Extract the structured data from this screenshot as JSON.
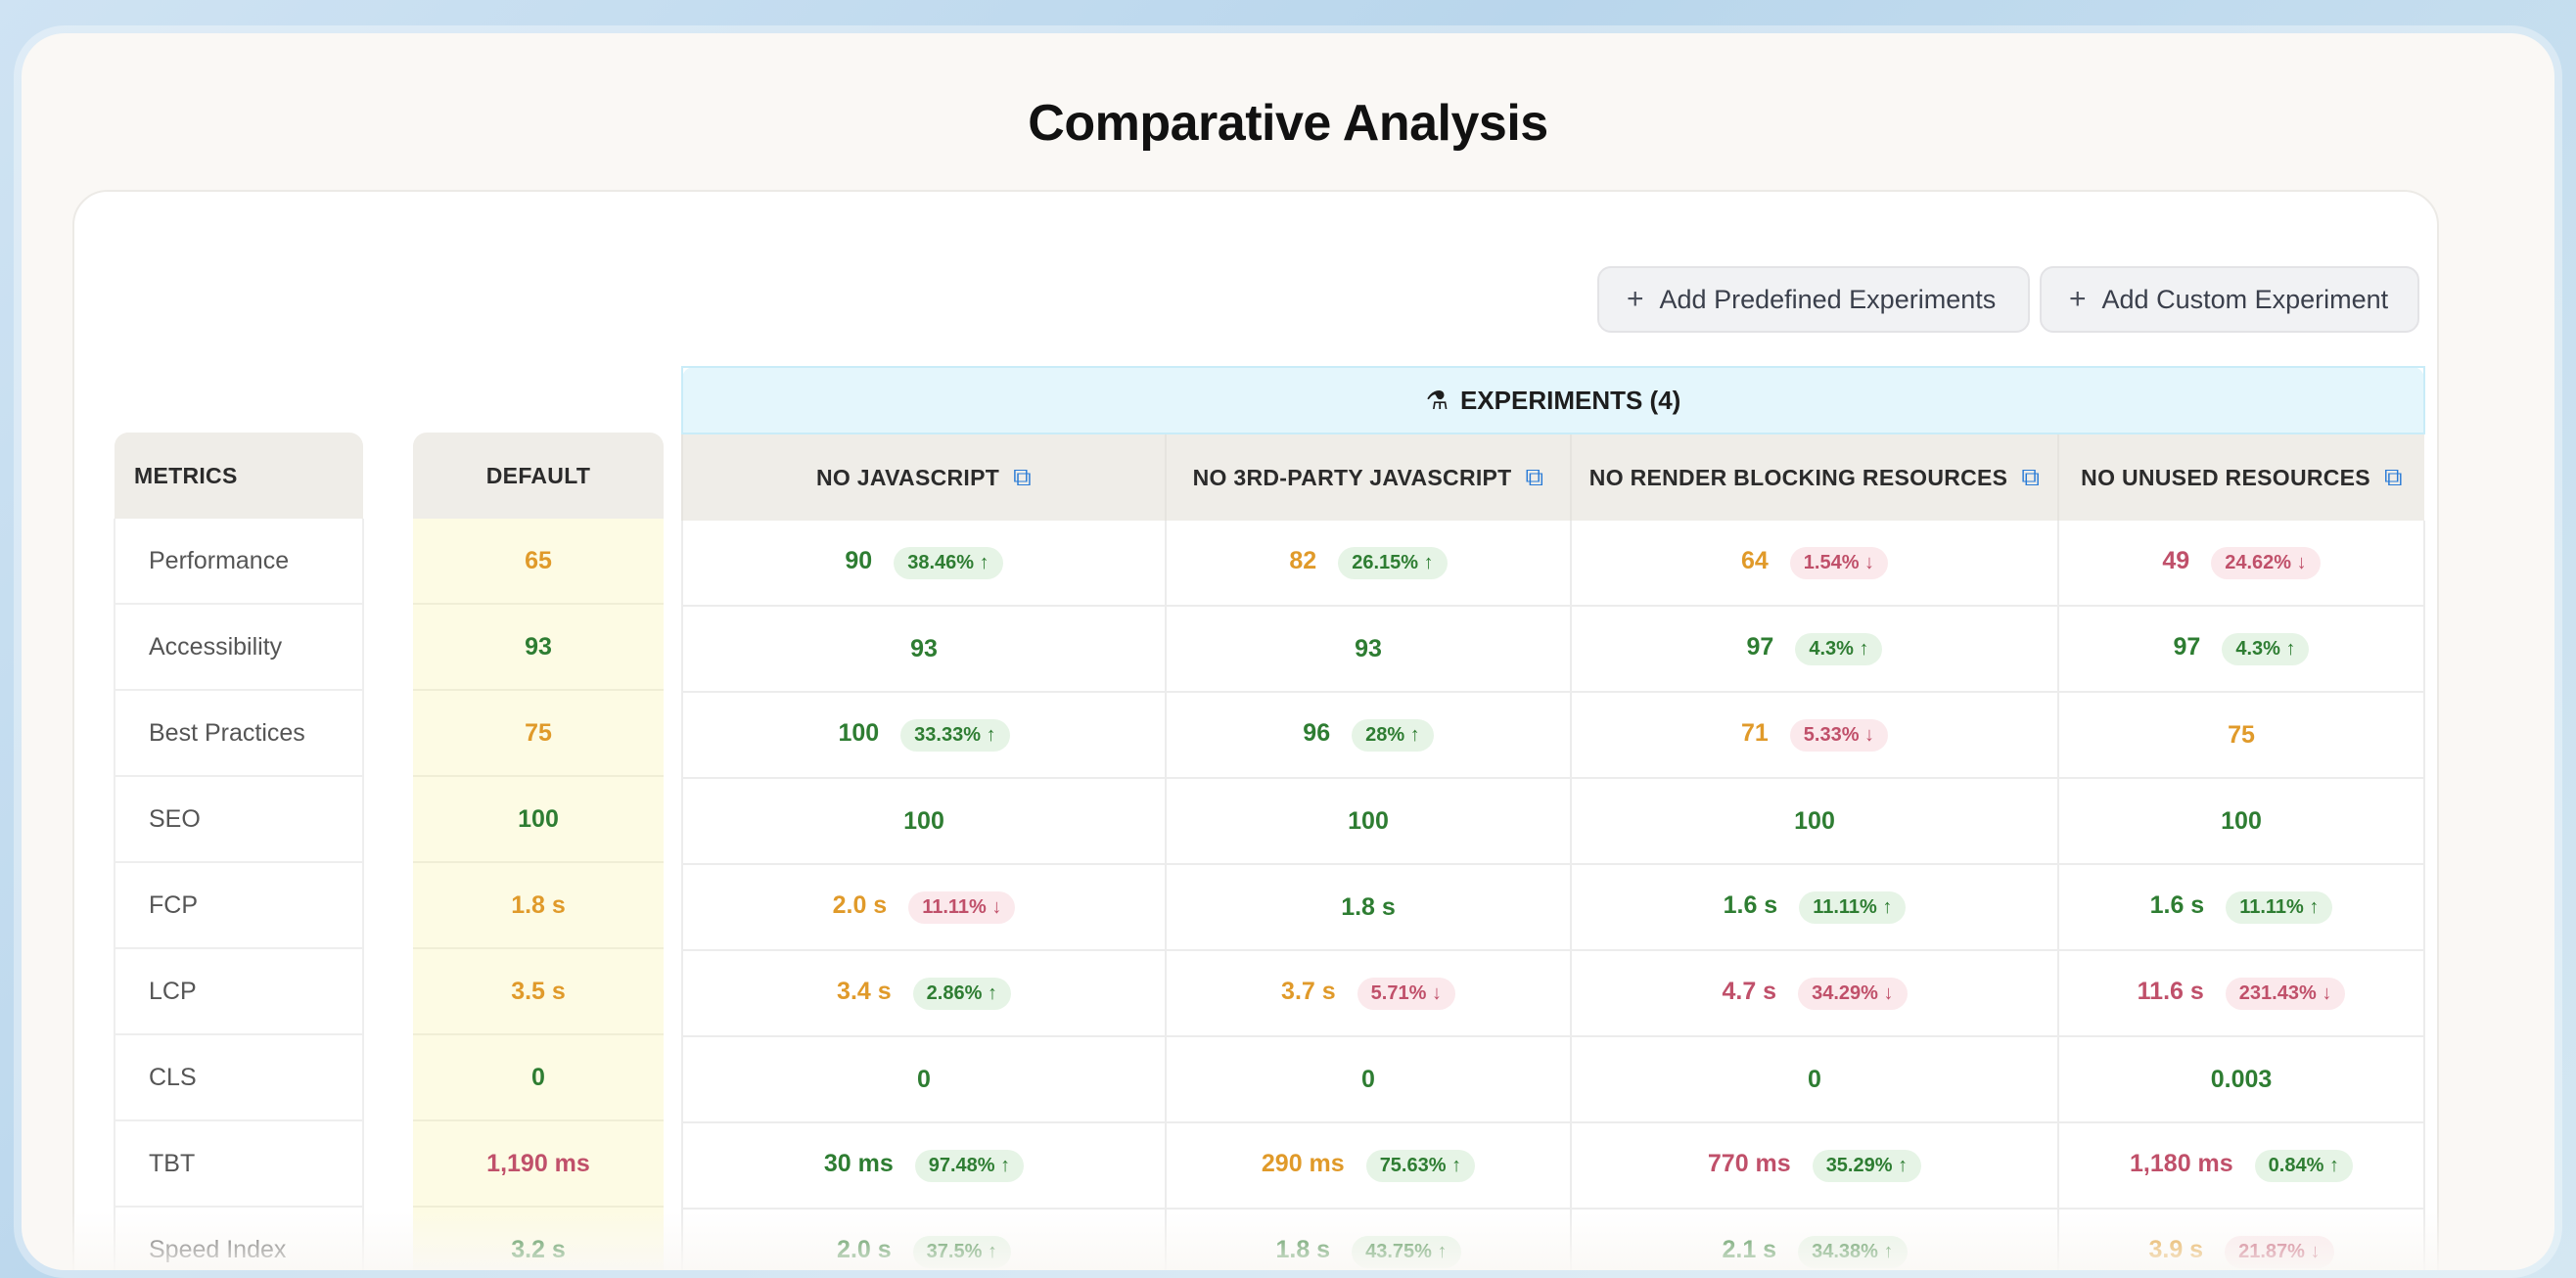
{
  "title": "Comparative Analysis",
  "buttons": {
    "add_predefined": "Add Predefined Experiments",
    "add_custom": "Add Custom Experiment"
  },
  "experiments_banner": "EXPERIMENTS (4)",
  "headers": {
    "metrics": "METRICS",
    "default": "DEFAULT",
    "experiments": [
      "NO JAVASCRIPT",
      "NO 3RD-PARTY JAVASCRIPT",
      "NO RENDER BLOCKING RESOURCES",
      "NO UNUSED RESOURCES"
    ]
  },
  "metrics": [
    "Performance",
    "Accessibility",
    "Best Practices",
    "SEO",
    "FCP",
    "LCP",
    "CLS",
    "TBT",
    "Speed Index"
  ],
  "defaults": [
    {
      "v": "65",
      "c": "o"
    },
    {
      "v": "93",
      "c": "g"
    },
    {
      "v": "75",
      "c": "o"
    },
    {
      "v": "100",
      "c": "g"
    },
    {
      "v": "1.8 s",
      "c": "o"
    },
    {
      "v": "3.5 s",
      "c": "o"
    },
    {
      "v": "0",
      "c": "g"
    },
    {
      "v": "1,190 ms",
      "c": "r"
    },
    {
      "v": "3.2 s",
      "c": "g"
    }
  ],
  "rows": [
    [
      {
        "v": "90",
        "c": "g",
        "b": "38.46%",
        "d": "up"
      },
      {
        "v": "82",
        "c": "o",
        "b": "26.15%",
        "d": "up"
      },
      {
        "v": "64",
        "c": "o",
        "b": "1.54%",
        "d": "dn"
      },
      {
        "v": "49",
        "c": "r",
        "b": "24.62%",
        "d": "dn"
      }
    ],
    [
      {
        "v": "93",
        "c": "g"
      },
      {
        "v": "93",
        "c": "g"
      },
      {
        "v": "97",
        "c": "g",
        "b": "4.3%",
        "d": "up"
      },
      {
        "v": "97",
        "c": "g",
        "b": "4.3%",
        "d": "up"
      }
    ],
    [
      {
        "v": "100",
        "c": "g",
        "b": "33.33%",
        "d": "up"
      },
      {
        "v": "96",
        "c": "g",
        "b": "28%",
        "d": "up"
      },
      {
        "v": "71",
        "c": "o",
        "b": "5.33%",
        "d": "dn"
      },
      {
        "v": "75",
        "c": "o"
      }
    ],
    [
      {
        "v": "100",
        "c": "g"
      },
      {
        "v": "100",
        "c": "g"
      },
      {
        "v": "100",
        "c": "g"
      },
      {
        "v": "100",
        "c": "g"
      }
    ],
    [
      {
        "v": "2.0 s",
        "c": "o",
        "b": "11.11%",
        "d": "dn"
      },
      {
        "v": "1.8 s",
        "c": "g"
      },
      {
        "v": "1.6 s",
        "c": "g",
        "b": "11.11%",
        "d": "up"
      },
      {
        "v": "1.6 s",
        "c": "g",
        "b": "11.11%",
        "d": "up"
      }
    ],
    [
      {
        "v": "3.4 s",
        "c": "o",
        "b": "2.86%",
        "d": "up"
      },
      {
        "v": "3.7 s",
        "c": "o",
        "b": "5.71%",
        "d": "dn"
      },
      {
        "v": "4.7 s",
        "c": "r",
        "b": "34.29%",
        "d": "dn"
      },
      {
        "v": "11.6 s",
        "c": "r",
        "b": "231.43%",
        "d": "dn"
      }
    ],
    [
      {
        "v": "0",
        "c": "g"
      },
      {
        "v": "0",
        "c": "g"
      },
      {
        "v": "0",
        "c": "g"
      },
      {
        "v": "0.003",
        "c": "g"
      }
    ],
    [
      {
        "v": "30 ms",
        "c": "g",
        "b": "97.48%",
        "d": "up"
      },
      {
        "v": "290 ms",
        "c": "o",
        "b": "75.63%",
        "d": "up"
      },
      {
        "v": "770 ms",
        "c": "r",
        "b": "35.29%",
        "d": "up"
      },
      {
        "v": "1,180 ms",
        "c": "r",
        "b": "0.84%",
        "d": "up"
      }
    ],
    [
      {
        "v": "2.0 s",
        "c": "g",
        "b": "37.5%",
        "d": "up"
      },
      {
        "v": "1.8 s",
        "c": "g",
        "b": "43.75%",
        "d": "up"
      },
      {
        "v": "2.1 s",
        "c": "g",
        "b": "34.38%",
        "d": "up"
      },
      {
        "v": "3.9 s",
        "c": "o",
        "b": "21.87%",
        "d": "dn"
      }
    ]
  ]
}
